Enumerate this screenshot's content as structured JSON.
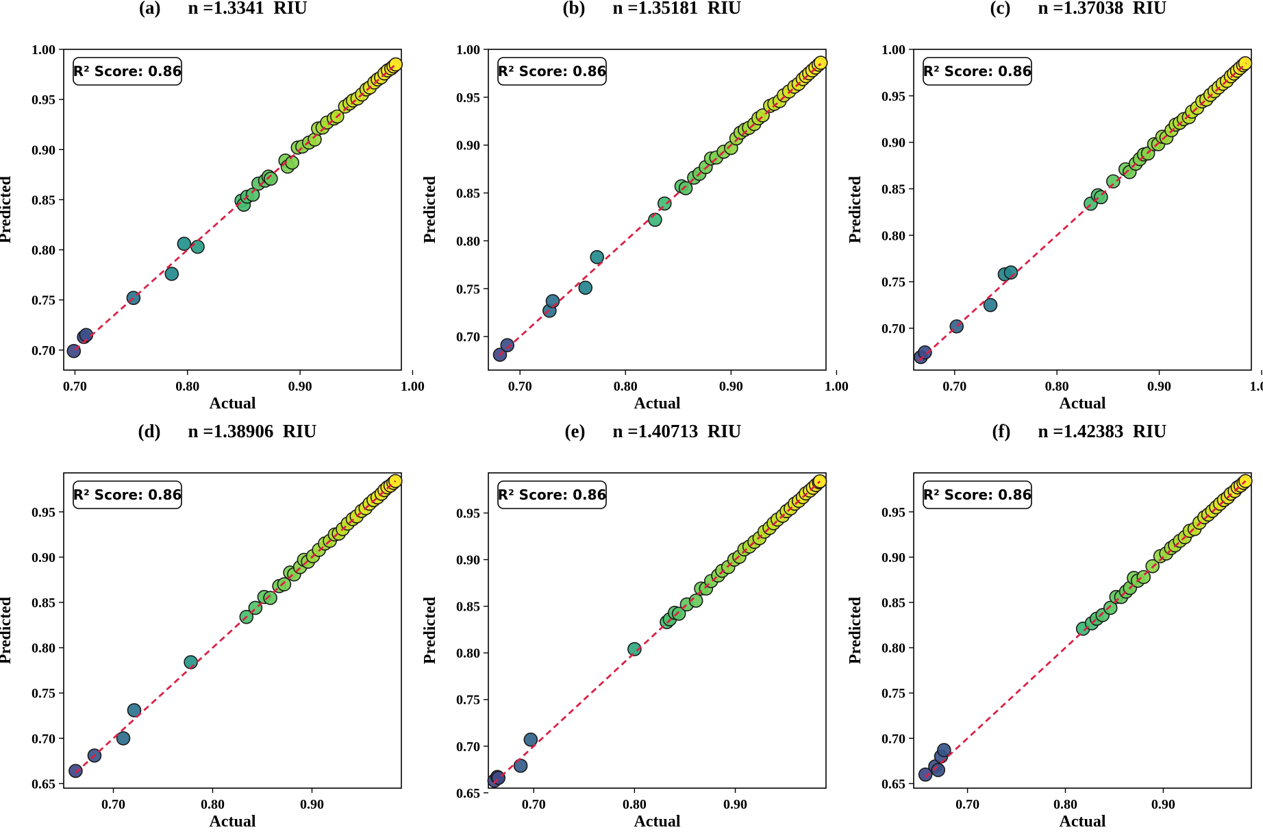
{
  "chart_data": [
    {
      "type": "scatter",
      "panel_label": "(a)",
      "title": "n =1.3341  RIU",
      "xlabel": "Actual",
      "ylabel": "Predicted",
      "score_label": "R² Score: 0.86",
      "xlim": [
        0.69,
        0.99
      ],
      "ylim": [
        0.68,
        1.0
      ],
      "xticks": [
        0.7,
        0.8,
        0.9,
        1.0
      ],
      "xtick_labels": [
        "0.70",
        "0.80",
        "0.90",
        "1.00"
      ],
      "yticks": [
        0.7,
        0.75,
        0.8,
        0.85,
        0.9,
        0.95,
        1.0
      ],
      "ytick_labels": [
        "0.70",
        "0.75",
        "0.80",
        "0.85",
        "0.90",
        "0.95",
        "1.00"
      ],
      "reference_line": [
        0.7,
        0.985
      ],
      "points": [
        [
          0.699,
          0.699
        ],
        [
          0.708,
          0.713
        ],
        [
          0.71,
          0.715
        ],
        [
          0.752,
          0.752
        ],
        [
          0.786,
          0.776
        ],
        [
          0.797,
          0.806
        ],
        [
          0.809,
          0.803
        ],
        [
          0.848,
          0.849
        ],
        [
          0.85,
          0.845
        ],
        [
          0.853,
          0.853
        ],
        [
          0.858,
          0.855
        ],
        [
          0.863,
          0.866
        ],
        [
          0.869,
          0.869
        ],
        [
          0.872,
          0.873
        ],
        [
          0.874,
          0.871
        ],
        [
          0.887,
          0.889
        ],
        [
          0.889,
          0.883
        ],
        [
          0.893,
          0.887
        ],
        [
          0.898,
          0.902
        ],
        [
          0.902,
          0.903
        ],
        [
          0.908,
          0.907
        ],
        [
          0.913,
          0.91
        ],
        [
          0.916,
          0.921
        ],
        [
          0.92,
          0.922
        ],
        [
          0.924,
          0.927
        ],
        [
          0.93,
          0.931
        ],
        [
          0.933,
          0.933
        ],
        [
          0.94,
          0.943
        ],
        [
          0.944,
          0.946
        ],
        [
          0.947,
          0.949
        ],
        [
          0.951,
          0.951
        ],
        [
          0.955,
          0.955
        ],
        [
          0.959,
          0.96
        ],
        [
          0.962,
          0.962
        ],
        [
          0.966,
          0.967
        ],
        [
          0.969,
          0.97
        ],
        [
          0.972,
          0.972
        ],
        [
          0.975,
          0.976
        ],
        [
          0.978,
          0.979
        ],
        [
          0.981,
          0.981
        ],
        [
          0.983,
          0.983
        ],
        [
          0.985,
          0.985
        ]
      ]
    },
    {
      "type": "scatter",
      "panel_label": "(b)",
      "title": "n =1.35181  RIU",
      "xlabel": "Actual",
      "ylabel": "Predicted",
      "score_label": "R² Score: 0.86",
      "xlim": [
        0.67,
        0.99
      ],
      "ylim": [
        0.665,
        1.0
      ],
      "xticks": [
        0.7,
        0.8,
        0.9,
        1.0
      ],
      "xtick_labels": [
        "0.70",
        "0.80",
        "0.90",
        "1.00"
      ],
      "yticks": [
        0.7,
        0.75,
        0.8,
        0.85,
        0.9,
        0.95,
        1.0
      ],
      "ytick_labels": [
        "0.70",
        "0.75",
        "0.80",
        "0.85",
        "0.90",
        "0.95",
        "1.00"
      ],
      "reference_line": [
        0.68,
        0.985
      ],
      "points": [
        [
          0.681,
          0.681
        ],
        [
          0.688,
          0.691
        ],
        [
          0.728,
          0.727
        ],
        [
          0.731,
          0.737
        ],
        [
          0.762,
          0.751
        ],
        [
          0.773,
          0.783
        ],
        [
          0.828,
          0.822
        ],
        [
          0.837,
          0.839
        ],
        [
          0.853,
          0.857
        ],
        [
          0.857,
          0.855
        ],
        [
          0.865,
          0.866
        ],
        [
          0.87,
          0.87
        ],
        [
          0.876,
          0.877
        ],
        [
          0.881,
          0.886
        ],
        [
          0.886,
          0.887
        ],
        [
          0.893,
          0.893
        ],
        [
          0.9,
          0.897
        ],
        [
          0.905,
          0.907
        ],
        [
          0.909,
          0.913
        ],
        [
          0.913,
          0.916
        ],
        [
          0.917,
          0.918
        ],
        [
          0.922,
          0.922
        ],
        [
          0.926,
          0.928
        ],
        [
          0.93,
          0.931
        ],
        [
          0.937,
          0.941
        ],
        [
          0.941,
          0.943
        ],
        [
          0.946,
          0.946
        ],
        [
          0.95,
          0.952
        ],
        [
          0.955,
          0.956
        ],
        [
          0.96,
          0.961
        ],
        [
          0.964,
          0.964
        ],
        [
          0.968,
          0.969
        ],
        [
          0.971,
          0.972
        ],
        [
          0.974,
          0.975
        ],
        [
          0.977,
          0.978
        ],
        [
          0.98,
          0.981
        ],
        [
          0.983,
          0.984
        ],
        [
          0.985,
          0.986
        ]
      ]
    },
    {
      "type": "scatter",
      "panel_label": "(c)",
      "title": "n =1.37038  RIU",
      "xlabel": "Actual",
      "ylabel": "Predicted",
      "score_label": "R² Score: 0.86",
      "xlim": [
        0.66,
        0.99
      ],
      "ylim": [
        0.655,
        1.0
      ],
      "xticks": [
        0.7,
        0.8,
        0.9,
        1.0
      ],
      "xtick_labels": [
        "0.70",
        "0.80",
        "0.90",
        "1.00"
      ],
      "yticks": [
        0.7,
        0.75,
        0.8,
        0.85,
        0.9,
        0.95,
        1.0
      ],
      "ytick_labels": [
        "0.70",
        "0.75",
        "0.80",
        "0.85",
        "0.90",
        "0.95",
        "1.00"
      ],
      "reference_line": [
        0.665,
        0.985
      ],
      "points": [
        [
          0.667,
          0.669
        ],
        [
          0.671,
          0.674
        ],
        [
          0.702,
          0.702
        ],
        [
          0.735,
          0.725
        ],
        [
          0.749,
          0.758
        ],
        [
          0.755,
          0.76
        ],
        [
          0.833,
          0.834
        ],
        [
          0.84,
          0.843
        ],
        [
          0.843,
          0.841
        ],
        [
          0.855,
          0.858
        ],
        [
          0.867,
          0.871
        ],
        [
          0.871,
          0.868
        ],
        [
          0.877,
          0.877
        ],
        [
          0.881,
          0.882
        ],
        [
          0.885,
          0.887
        ],
        [
          0.889,
          0.888
        ],
        [
          0.895,
          0.898
        ],
        [
          0.899,
          0.898
        ],
        [
          0.903,
          0.906
        ],
        [
          0.907,
          0.905
        ],
        [
          0.912,
          0.913
        ],
        [
          0.916,
          0.919
        ],
        [
          0.92,
          0.921
        ],
        [
          0.924,
          0.925
        ],
        [
          0.929,
          0.927
        ],
        [
          0.932,
          0.933
        ],
        [
          0.937,
          0.937
        ],
        [
          0.942,
          0.944
        ],
        [
          0.946,
          0.946
        ],
        [
          0.95,
          0.951
        ],
        [
          0.954,
          0.955
        ],
        [
          0.958,
          0.959
        ],
        [
          0.962,
          0.963
        ],
        [
          0.966,
          0.966
        ],
        [
          0.97,
          0.971
        ],
        [
          0.973,
          0.974
        ],
        [
          0.976,
          0.977
        ],
        [
          0.979,
          0.98
        ],
        [
          0.982,
          0.983
        ],
        [
          0.984,
          0.985
        ]
      ]
    },
    {
      "type": "scatter",
      "panel_label": "(d)",
      "title": "n =1.38906  RIU",
      "xlabel": "Actual",
      "ylabel": "Predicted",
      "score_label": "R² Score: 0.86",
      "xlim": [
        0.65,
        0.99
      ],
      "ylim": [
        0.645,
        0.993
      ],
      "xticks": [
        0.7,
        0.8,
        0.9
      ],
      "xtick_labels": [
        "0.70",
        "0.80",
        "0.90"
      ],
      "yticks": [
        0.65,
        0.7,
        0.75,
        0.8,
        0.85,
        0.9,
        0.95
      ],
      "ytick_labels": [
        "0.65",
        "0.70",
        "0.75",
        "0.80",
        "0.85",
        "0.90",
        "0.95"
      ],
      "reference_line": [
        0.662,
        0.984
      ],
      "points": [
        [
          0.662,
          0.664
        ],
        [
          0.681,
          0.681
        ],
        [
          0.71,
          0.7
        ],
        [
          0.721,
          0.731
        ],
        [
          0.778,
          0.784
        ],
        [
          0.834,
          0.834
        ],
        [
          0.843,
          0.844
        ],
        [
          0.852,
          0.856
        ],
        [
          0.858,
          0.855
        ],
        [
          0.867,
          0.868
        ],
        [
          0.872,
          0.87
        ],
        [
          0.878,
          0.883
        ],
        [
          0.882,
          0.881
        ],
        [
          0.888,
          0.889
        ],
        [
          0.892,
          0.897
        ],
        [
          0.896,
          0.895
        ],
        [
          0.901,
          0.901
        ],
        [
          0.907,
          0.908
        ],
        [
          0.913,
          0.915
        ],
        [
          0.918,
          0.918
        ],
        [
          0.923,
          0.925
        ],
        [
          0.927,
          0.926
        ],
        [
          0.931,
          0.931
        ],
        [
          0.936,
          0.937
        ],
        [
          0.941,
          0.942
        ],
        [
          0.945,
          0.945
        ],
        [
          0.95,
          0.951
        ],
        [
          0.954,
          0.954
        ],
        [
          0.958,
          0.959
        ],
        [
          0.962,
          0.963
        ],
        [
          0.966,
          0.966
        ],
        [
          0.97,
          0.97
        ],
        [
          0.973,
          0.974
        ],
        [
          0.976,
          0.977
        ],
        [
          0.979,
          0.979
        ],
        [
          0.982,
          0.982
        ],
        [
          0.984,
          0.984
        ]
      ]
    },
    {
      "type": "scatter",
      "panel_label": "(e)",
      "title": "n =1.40713  RIU",
      "xlabel": "Actual",
      "ylabel": "Predicted",
      "score_label": "R² Score: 0.86",
      "xlim": [
        0.655,
        0.99
      ],
      "ylim": [
        0.655,
        0.993
      ],
      "xticks": [
        0.7,
        0.8,
        0.9
      ],
      "xtick_labels": [
        "0.70",
        "0.80",
        "0.90"
      ],
      "yticks": [
        0.65,
        0.7,
        0.75,
        0.8,
        0.85,
        0.9,
        0.95
      ],
      "ytick_labels": [
        "0.65",
        "0.70",
        "0.75",
        "0.80",
        "0.85",
        "0.90",
        "0.95"
      ],
      "reference_line": [
        0.66,
        0.984
      ],
      "points": [
        [
          0.661,
          0.663
        ],
        [
          0.664,
          0.667
        ],
        [
          0.665,
          0.666
        ],
        [
          0.687,
          0.679
        ],
        [
          0.697,
          0.707
        ],
        [
          0.8,
          0.804
        ],
        [
          0.832,
          0.833
        ],
        [
          0.835,
          0.836
        ],
        [
          0.84,
          0.843
        ],
        [
          0.844,
          0.842
        ],
        [
          0.852,
          0.852
        ],
        [
          0.861,
          0.856
        ],
        [
          0.866,
          0.869
        ],
        [
          0.871,
          0.869
        ],
        [
          0.876,
          0.877
        ],
        [
          0.883,
          0.883
        ],
        [
          0.887,
          0.888
        ],
        [
          0.893,
          0.892
        ],
        [
          0.899,
          0.9
        ],
        [
          0.904,
          0.903
        ],
        [
          0.909,
          0.911
        ],
        [
          0.914,
          0.914
        ],
        [
          0.919,
          0.919
        ],
        [
          0.924,
          0.923
        ],
        [
          0.929,
          0.93
        ],
        [
          0.934,
          0.934
        ],
        [
          0.938,
          0.939
        ],
        [
          0.942,
          0.943
        ],
        [
          0.947,
          0.947
        ],
        [
          0.951,
          0.952
        ],
        [
          0.955,
          0.955
        ],
        [
          0.959,
          0.96
        ],
        [
          0.963,
          0.963
        ],
        [
          0.967,
          0.967
        ],
        [
          0.97,
          0.971
        ],
        [
          0.974,
          0.974
        ],
        [
          0.977,
          0.977
        ],
        [
          0.98,
          0.98
        ],
        [
          0.983,
          0.983
        ],
        [
          0.984,
          0.984
        ]
      ]
    },
    {
      "type": "scatter",
      "panel_label": "(f)",
      "title": "n =1.42383  RIU",
      "xlabel": "Actual",
      "ylabel": "Predicted",
      "score_label": "R² Score: 0.86",
      "xlim": [
        0.645,
        0.99
      ],
      "ylim": [
        0.645,
        0.993
      ],
      "xticks": [
        0.7,
        0.8,
        0.9
      ],
      "xtick_labels": [
        "0.70",
        "0.80",
        "0.90"
      ],
      "yticks": [
        0.65,
        0.7,
        0.75,
        0.8,
        0.85,
        0.9,
        0.95
      ],
      "ytick_labels": [
        "0.65",
        "0.70",
        "0.75",
        "0.80",
        "0.85",
        "0.90",
        "0.95"
      ],
      "reference_line": [
        0.657,
        0.984
      ],
      "points": [
        [
          0.657,
          0.66
        ],
        [
          0.667,
          0.669
        ],
        [
          0.67,
          0.665
        ],
        [
          0.673,
          0.68
        ],
        [
          0.676,
          0.687
        ],
        [
          0.818,
          0.821
        ],
        [
          0.827,
          0.827
        ],
        [
          0.832,
          0.832
        ],
        [
          0.838,
          0.836
        ],
        [
          0.846,
          0.844
        ],
        [
          0.852,
          0.856
        ],
        [
          0.857,
          0.856
        ],
        [
          0.862,
          0.862
        ],
        [
          0.866,
          0.866
        ],
        [
          0.87,
          0.877
        ],
        [
          0.874,
          0.874
        ],
        [
          0.88,
          0.878
        ],
        [
          0.889,
          0.89
        ],
        [
          0.897,
          0.901
        ],
        [
          0.903,
          0.904
        ],
        [
          0.908,
          0.91
        ],
        [
          0.912,
          0.913
        ],
        [
          0.917,
          0.918
        ],
        [
          0.922,
          0.922
        ],
        [
          0.927,
          0.929
        ],
        [
          0.932,
          0.931
        ],
        [
          0.937,
          0.938
        ],
        [
          0.942,
          0.944
        ],
        [
          0.946,
          0.947
        ],
        [
          0.95,
          0.951
        ],
        [
          0.954,
          0.955
        ],
        [
          0.958,
          0.959
        ],
        [
          0.962,
          0.963
        ],
        [
          0.966,
          0.966
        ],
        [
          0.969,
          0.97
        ],
        [
          0.973,
          0.973
        ],
        [
          0.976,
          0.977
        ],
        [
          0.979,
          0.979
        ],
        [
          0.982,
          0.982
        ],
        [
          0.984,
          0.984
        ]
      ]
    }
  ],
  "colors": {
    "reference_line": "#dc1f44",
    "marker_edge": "#1a1a1a",
    "axes": "#000000",
    "colormap": [
      "#3f4788",
      "#2c728e",
      "#21908d",
      "#3bbb75",
      "#7ad151",
      "#bddf26",
      "#fde725"
    ]
  }
}
